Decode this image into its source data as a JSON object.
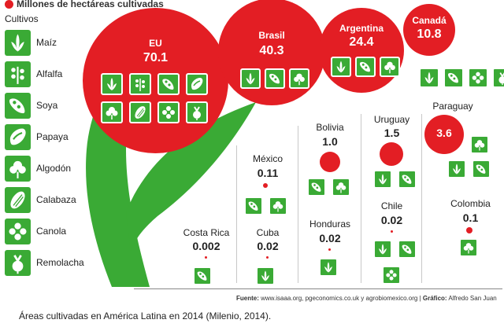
{
  "legend": {
    "unit_label": "Millones de hectáreas cultivadas",
    "crops_title": "Cultivos",
    "crops": [
      {
        "label": "Maíz",
        "icon": "corn-icon"
      },
      {
        "label": "Alfalfa",
        "icon": "alfalfa-icon"
      },
      {
        "label": "Soya",
        "icon": "soy-icon"
      },
      {
        "label": "Papaya",
        "icon": "papaya-icon"
      },
      {
        "label": "Algodón",
        "icon": "cotton-icon"
      },
      {
        "label": "Calabaza",
        "icon": "squash-icon"
      },
      {
        "label": "Canola",
        "icon": "canola-icon"
      },
      {
        "label": "Remolacha",
        "icon": "beet-icon"
      }
    ]
  },
  "countries": {
    "eu": {
      "name": "EU",
      "value": "70.1"
    },
    "brasil": {
      "name": "Brasil",
      "value": "40.3"
    },
    "argentina": {
      "name": "Argentina",
      "value": "24.4"
    },
    "canada": {
      "name": "Canadá",
      "value": "10.8"
    },
    "paraguay": {
      "name": "Paraguay",
      "value": "3.6"
    },
    "bolivia": {
      "name": "Bolivia",
      "value": "1.0"
    },
    "uruguay": {
      "name": "Uruguay",
      "value": "1.5"
    },
    "mexico": {
      "name": "México",
      "value": "0.11"
    },
    "honduras": {
      "name": "Honduras",
      "value": "0.02"
    },
    "chile": {
      "name": "Chile",
      "value": "0.02"
    },
    "colombia": {
      "name": "Colombia",
      "value": "0.1"
    },
    "costa_rica": {
      "name": "Costa Rica",
      "value": "0.002"
    },
    "cuba": {
      "name": "Cuba",
      "value": "0.02"
    }
  },
  "footer": {
    "source_label": "Fuente:",
    "source_text": "www.isaaa.org, pgeconomics.co.uk y agrobiomexico.org",
    "graphic_label": "Gráfico:",
    "graphic_text": "Alfredo San Juan",
    "caption": "Áreas cultivadas en América Latina en 2014 (Milenio, 2014)."
  },
  "colors": {
    "red": "#e31e24",
    "green": "#3aaa35"
  }
}
